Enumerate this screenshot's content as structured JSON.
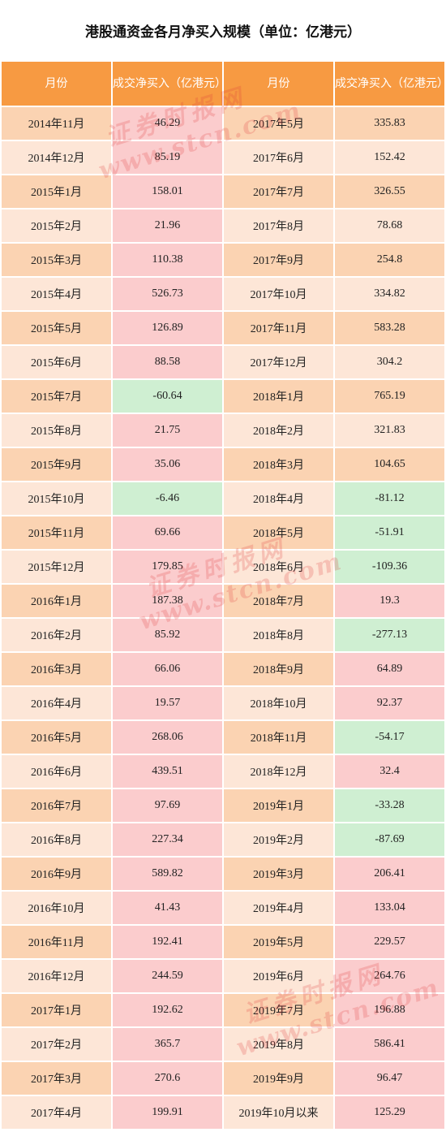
{
  "title": "港股通资金各月净买入规模（单位：亿港元）",
  "headers": [
    "月份",
    "成交净买入（亿港元）",
    "月份",
    "成交净买入（亿港元）"
  ],
  "watermark": {
    "line1": "证券时报网",
    "line2": "www.stcn.com"
  },
  "colors": {
    "header": "#f79a42",
    "positive": "#fbcccd",
    "negative": "#cfefd2",
    "row_odd": "#fbd3b2",
    "row_even": "#fde6d7"
  },
  "rows": [
    {
      "m1": "2014年11月",
      "v1": "46.29",
      "m2": "2017年5月",
      "v2": "335.83"
    },
    {
      "m1": "2014年12月",
      "v1": "85.19",
      "m2": "2017年6月",
      "v2": "152.42"
    },
    {
      "m1": "2015年1月",
      "v1": "158.01",
      "m2": "2017年7月",
      "v2": "326.55"
    },
    {
      "m1": "2015年2月",
      "v1": "21.96",
      "m2": "2017年8月",
      "v2": "78.68"
    },
    {
      "m1": "2015年3月",
      "v1": "110.38",
      "m2": "2017年9月",
      "v2": "254.8"
    },
    {
      "m1": "2015年4月",
      "v1": "526.73",
      "m2": "2017年10月",
      "v2": "334.82"
    },
    {
      "m1": "2015年5月",
      "v1": "126.89",
      "m2": "2017年11月",
      "v2": "583.28"
    },
    {
      "m1": "2015年6月",
      "v1": "88.58",
      "m2": "2017年12月",
      "v2": "304.2"
    },
    {
      "m1": "2015年7月",
      "v1": "-60.64",
      "m2": "2018年1月",
      "v2": "765.19"
    },
    {
      "m1": "2015年8月",
      "v1": "21.75",
      "m2": "2018年2月",
      "v2": "321.83"
    },
    {
      "m1": "2015年9月",
      "v1": "35.06",
      "m2": "2018年3月",
      "v2": "104.65"
    },
    {
      "m1": "2015年10月",
      "v1": "-6.46",
      "m2": "2018年4月",
      "v2": "-81.12"
    },
    {
      "m1": "2015年11月",
      "v1": "69.66",
      "m2": "2018年5月",
      "v2": "-51.91"
    },
    {
      "m1": "2015年12月",
      "v1": "179.85",
      "m2": "2018年6月",
      "v2": "-109.36"
    },
    {
      "m1": "2016年1月",
      "v1": "187.38",
      "m2": "2018年7月",
      "v2": "19.3"
    },
    {
      "m1": "2016年2月",
      "v1": "85.92",
      "m2": "2018年8月",
      "v2": "-277.13"
    },
    {
      "m1": "2016年3月",
      "v1": "66.06",
      "m2": "2018年9月",
      "v2": "64.89"
    },
    {
      "m1": "2016年4月",
      "v1": "19.57",
      "m2": "2018年10月",
      "v2": "92.37"
    },
    {
      "m1": "2016年5月",
      "v1": "268.06",
      "m2": "2018年11月",
      "v2": "-54.17"
    },
    {
      "m1": "2016年6月",
      "v1": "439.51",
      "m2": "2018年12月",
      "v2": "32.4"
    },
    {
      "m1": "2016年7月",
      "v1": "97.69",
      "m2": "2019年1月",
      "v2": "-33.28"
    },
    {
      "m1": "2016年8月",
      "v1": "227.34",
      "m2": "2019年2月",
      "v2": "-87.69"
    },
    {
      "m1": "2016年9月",
      "v1": "589.82",
      "m2": "2019年3月",
      "v2": "206.41"
    },
    {
      "m1": "2016年10月",
      "v1": "41.43",
      "m2": "2019年4月",
      "v2": "133.04"
    },
    {
      "m1": "2016年11月",
      "v1": "192.41",
      "m2": "2019年5月",
      "v2": "229.57"
    },
    {
      "m1": "2016年12月",
      "v1": "244.59",
      "m2": "2019年6月",
      "v2": "264.76"
    },
    {
      "m1": "2017年1月",
      "v1": "192.62",
      "m2": "2019年7月",
      "v2": "196.88"
    },
    {
      "m1": "2017年2月",
      "v1": "365.7",
      "m2": "2019年8月",
      "v2": "586.41"
    },
    {
      "m1": "2017年3月",
      "v1": "270.6",
      "m2": "2019年9月",
      "v2": "96.47"
    },
    {
      "m1": "2017年4月",
      "v1": "199.91",
      "m2": "2019年10月以来",
      "v2": "125.29"
    }
  ]
}
